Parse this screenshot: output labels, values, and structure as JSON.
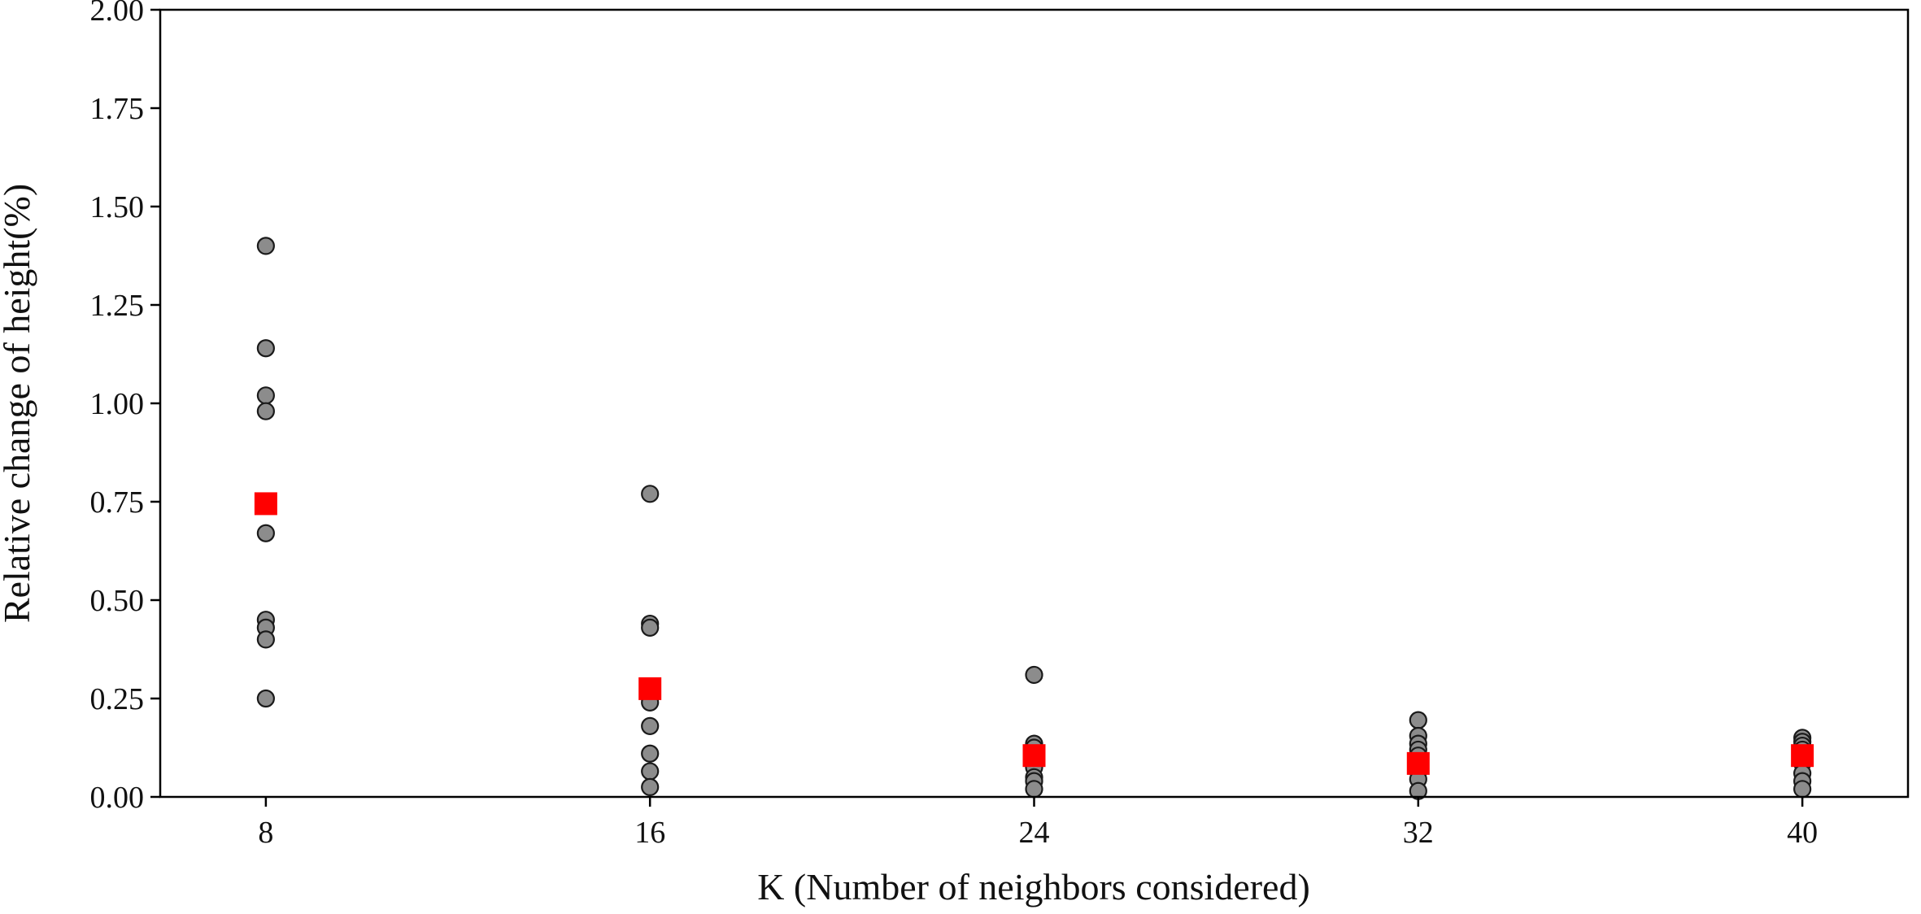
{
  "chart_data": {
    "type": "scatter",
    "title": "",
    "xlabel": "K (Number of neighbors considered)",
    "ylabel": "Relative change of height(%)",
    "xlim": [
      5.8,
      42.2
    ],
    "ylim": [
      0,
      2.0
    ],
    "x_ticks": [
      "8",
      "16",
      "24",
      "32",
      "40"
    ],
    "y_ticks": [
      "0.00",
      "0.25",
      "0.50",
      "0.75",
      "1.00",
      "1.25",
      "1.50",
      "1.75",
      "2.00"
    ],
    "grid": false,
    "legend": "none",
    "series": [
      {
        "marker": "circle",
        "color": "#8c8c8c",
        "points": [
          {
            "x": 8,
            "y": 1.4
          },
          {
            "x": 8,
            "y": 1.14
          },
          {
            "x": 8,
            "y": 1.02
          },
          {
            "x": 8,
            "y": 0.98
          },
          {
            "x": 8,
            "y": 0.67
          },
          {
            "x": 8,
            "y": 0.45
          },
          {
            "x": 8,
            "y": 0.43
          },
          {
            "x": 8,
            "y": 0.4
          },
          {
            "x": 8,
            "y": 0.25
          },
          {
            "x": 16,
            "y": 0.77
          },
          {
            "x": 16,
            "y": 0.44
          },
          {
            "x": 16,
            "y": 0.43
          },
          {
            "x": 16,
            "y": 0.25
          },
          {
            "x": 16,
            "y": 0.24
          },
          {
            "x": 16,
            "y": 0.18
          },
          {
            "x": 16,
            "y": 0.11
          },
          {
            "x": 16,
            "y": 0.065
          },
          {
            "x": 16,
            "y": 0.025
          },
          {
            "x": 24,
            "y": 0.31
          },
          {
            "x": 24,
            "y": 0.135
          },
          {
            "x": 24,
            "y": 0.125
          },
          {
            "x": 24,
            "y": 0.11
          },
          {
            "x": 24,
            "y": 0.09
          },
          {
            "x": 24,
            "y": 0.075
          },
          {
            "x": 24,
            "y": 0.05
          },
          {
            "x": 24,
            "y": 0.04
          },
          {
            "x": 24,
            "y": 0.02
          },
          {
            "x": 32,
            "y": 0.195
          },
          {
            "x": 32,
            "y": 0.155
          },
          {
            "x": 32,
            "y": 0.135
          },
          {
            "x": 32,
            "y": 0.12
          },
          {
            "x": 32,
            "y": 0.105
          },
          {
            "x": 32,
            "y": 0.085
          },
          {
            "x": 32,
            "y": 0.065
          },
          {
            "x": 32,
            "y": 0.045
          },
          {
            "x": 32,
            "y": 0.015
          },
          {
            "x": 40,
            "y": 0.15
          },
          {
            "x": 40,
            "y": 0.14
          },
          {
            "x": 40,
            "y": 0.13
          },
          {
            "x": 40,
            "y": 0.12
          },
          {
            "x": 40,
            "y": 0.1
          },
          {
            "x": 40,
            "y": 0.085
          },
          {
            "x": 40,
            "y": 0.06
          },
          {
            "x": 40,
            "y": 0.04
          },
          {
            "x": 40,
            "y": 0.02
          }
        ]
      },
      {
        "marker": "square",
        "color": "#ff0000",
        "points": [
          {
            "x": 8,
            "y": 0.745
          },
          {
            "x": 16,
            "y": 0.275
          },
          {
            "x": 24,
            "y": 0.105
          },
          {
            "x": 32,
            "y": 0.085
          },
          {
            "x": 40,
            "y": 0.105
          }
        ]
      }
    ]
  }
}
